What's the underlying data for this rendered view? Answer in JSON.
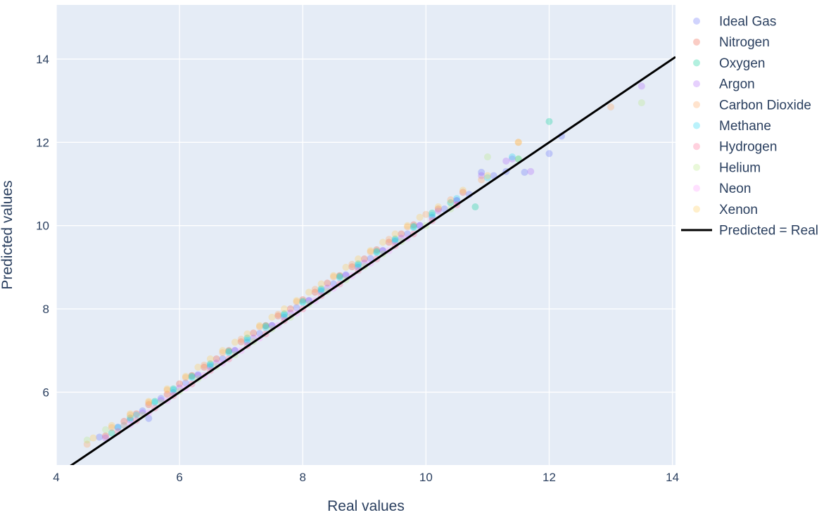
{
  "chart_data": {
    "type": "scatter",
    "xlabel": "Real values",
    "ylabel": "Predicted values",
    "xlim": [
      4,
      14.05
    ],
    "ylim": [
      4.25,
      15.3
    ],
    "x_ticks": [
      4,
      6,
      8,
      10,
      12,
      14
    ],
    "y_ticks": [
      6,
      8,
      10,
      12,
      14
    ],
    "grid": true,
    "legend_position": "right",
    "plot_background": "#e5ecf6",
    "series": [
      {
        "name": "Ideal Gas",
        "color": "#636efa",
        "points": [
          [
            4.7,
            4.92
          ],
          [
            5.0,
            5.16
          ],
          [
            5.2,
            5.33
          ],
          [
            5.4,
            5.55
          ],
          [
            5.5,
            5.37
          ],
          [
            5.7,
            5.85
          ],
          [
            5.9,
            5.99
          ],
          [
            6.1,
            6.22
          ],
          [
            6.3,
            6.42
          ],
          [
            6.5,
            6.61
          ],
          [
            6.7,
            6.8
          ],
          [
            6.9,
            7.0
          ],
          [
            7.1,
            7.2
          ],
          [
            7.3,
            7.41
          ],
          [
            7.5,
            7.6
          ],
          [
            7.7,
            7.8
          ],
          [
            7.9,
            8.03
          ],
          [
            8.1,
            8.2
          ],
          [
            8.3,
            8.42
          ],
          [
            8.5,
            8.6
          ],
          [
            8.7,
            8.82
          ],
          [
            8.9,
            9.0
          ],
          [
            9.1,
            9.21
          ],
          [
            9.3,
            9.4
          ],
          [
            9.5,
            9.62
          ],
          [
            9.7,
            9.8
          ],
          [
            9.9,
            10.0
          ],
          [
            10.1,
            10.2
          ],
          [
            10.3,
            10.4
          ],
          [
            10.5,
            10.6
          ],
          [
            10.7,
            10.75
          ],
          [
            10.9,
            11.28
          ],
          [
            11.1,
            11.2
          ],
          [
            11.3,
            11.3
          ],
          [
            11.6,
            11.28
          ],
          [
            12.0,
            11.73
          ],
          [
            12.2,
            12.15
          ]
        ]
      },
      {
        "name": "Nitrogen",
        "color": "#ef553b",
        "points": [
          [
            4.8,
            4.95
          ],
          [
            5.1,
            5.3
          ],
          [
            5.3,
            5.48
          ],
          [
            5.5,
            5.7
          ],
          [
            5.8,
            5.95
          ],
          [
            6.0,
            6.2
          ],
          [
            6.2,
            6.4
          ],
          [
            6.4,
            6.6
          ],
          [
            6.6,
            6.8
          ],
          [
            6.8,
            7.0
          ],
          [
            7.0,
            7.21
          ],
          [
            7.2,
            7.42
          ],
          [
            7.4,
            7.6
          ],
          [
            7.6,
            7.83
          ],
          [
            7.8,
            8.0
          ],
          [
            8.0,
            8.22
          ],
          [
            8.2,
            8.4
          ],
          [
            8.4,
            8.62
          ],
          [
            8.6,
            8.8
          ],
          [
            8.8,
            9.01
          ],
          [
            9.0,
            9.2
          ],
          [
            9.2,
            9.42
          ],
          [
            9.4,
            9.6
          ],
          [
            9.6,
            9.8
          ],
          [
            9.8,
            10.02
          ],
          [
            10.2,
            10.4
          ],
          [
            10.6,
            10.8
          ]
        ]
      },
      {
        "name": "Oxygen",
        "color": "#00cc96",
        "points": [
          [
            4.9,
            5.02
          ],
          [
            5.2,
            5.38
          ],
          [
            5.6,
            5.78
          ],
          [
            5.9,
            6.08
          ],
          [
            6.2,
            6.38
          ],
          [
            6.5,
            6.68
          ],
          [
            6.8,
            6.98
          ],
          [
            7.1,
            7.3
          ],
          [
            7.4,
            7.59
          ],
          [
            7.7,
            7.88
          ],
          [
            8.0,
            8.18
          ],
          [
            8.3,
            8.48
          ],
          [
            8.6,
            8.78
          ],
          [
            8.9,
            9.08
          ],
          [
            9.2,
            9.38
          ],
          [
            9.5,
            9.68
          ],
          [
            9.8,
            9.98
          ],
          [
            10.1,
            10.3
          ],
          [
            10.4,
            10.55
          ],
          [
            10.8,
            10.45
          ],
          [
            11.5,
            11.6
          ],
          [
            12.0,
            12.5
          ]
        ]
      },
      {
        "name": "Argon",
        "color": "#ab63fa",
        "points": [
          [
            4.8,
            4.9
          ],
          [
            5.1,
            5.2
          ],
          [
            5.4,
            5.5
          ],
          [
            5.7,
            5.8
          ],
          [
            6.0,
            6.1
          ],
          [
            6.3,
            6.4
          ],
          [
            6.6,
            6.7
          ],
          [
            6.9,
            7.0
          ],
          [
            7.2,
            7.3
          ],
          [
            7.5,
            7.6
          ],
          [
            7.8,
            7.9
          ],
          [
            8.1,
            8.2
          ],
          [
            8.4,
            8.5
          ],
          [
            8.7,
            8.8
          ],
          [
            9.0,
            9.1
          ],
          [
            9.3,
            9.4
          ],
          [
            9.6,
            9.7
          ],
          [
            9.9,
            10.0
          ],
          [
            10.2,
            10.35
          ],
          [
            10.5,
            10.6
          ],
          [
            10.9,
            11.2
          ],
          [
            11.3,
            11.55
          ],
          [
            11.7,
            11.3
          ],
          [
            11.4,
            11.6
          ],
          [
            13.5,
            13.35
          ]
        ]
      },
      {
        "name": "Carbon Dioxide",
        "color": "#ffa15a",
        "points": [
          [
            4.5,
            4.75
          ],
          [
            4.9,
            5.15
          ],
          [
            5.2,
            5.45
          ],
          [
            5.5,
            5.75
          ],
          [
            5.8,
            6.05
          ],
          [
            6.1,
            6.35
          ],
          [
            6.4,
            6.65
          ],
          [
            6.7,
            6.95
          ],
          [
            7.0,
            7.27
          ],
          [
            7.3,
            7.57
          ],
          [
            7.6,
            7.87
          ],
          [
            7.9,
            8.17
          ],
          [
            8.2,
            8.47
          ],
          [
            8.5,
            8.77
          ],
          [
            8.8,
            9.07
          ],
          [
            9.1,
            9.37
          ],
          [
            9.4,
            9.67
          ],
          [
            9.7,
            9.97
          ],
          [
            10.0,
            10.27
          ],
          [
            10.4,
            10.62
          ],
          [
            10.9,
            11.1
          ],
          [
            11.5,
            12.0
          ],
          [
            13.0,
            12.85
          ]
        ]
      },
      {
        "name": "Methane",
        "color": "#19d3f3",
        "points": [
          [
            5.0,
            5.15
          ],
          [
            5.3,
            5.45
          ],
          [
            5.6,
            5.75
          ],
          [
            5.9,
            6.05
          ],
          [
            6.2,
            6.35
          ],
          [
            6.5,
            6.65
          ],
          [
            6.8,
            6.95
          ],
          [
            7.1,
            7.25
          ],
          [
            7.4,
            7.55
          ],
          [
            7.7,
            7.85
          ],
          [
            8.0,
            8.15
          ],
          [
            8.3,
            8.45
          ],
          [
            8.6,
            8.75
          ],
          [
            8.9,
            9.05
          ],
          [
            9.2,
            9.35
          ],
          [
            9.5,
            9.65
          ],
          [
            9.8,
            9.95
          ],
          [
            10.1,
            10.25
          ],
          [
            10.5,
            10.65
          ],
          [
            11.0,
            11.15
          ],
          [
            11.4,
            11.65
          ]
        ]
      },
      {
        "name": "Hydrogen",
        "color": "#ff6692",
        "points": [
          [
            5.0,
            5.05
          ],
          [
            5.3,
            5.32
          ],
          [
            5.6,
            5.62
          ],
          [
            5.9,
            5.92
          ],
          [
            6.2,
            6.2
          ],
          [
            6.5,
            6.52
          ],
          [
            6.8,
            6.8
          ],
          [
            7.1,
            7.12
          ],
          [
            7.4,
            7.4
          ],
          [
            7.7,
            7.72
          ],
          [
            8.0,
            8.0
          ],
          [
            8.3,
            8.32
          ],
          [
            8.6,
            8.6
          ],
          [
            8.9,
            8.92
          ],
          [
            9.2,
            9.2
          ],
          [
            9.5,
            9.52
          ],
          [
            9.8,
            9.8
          ],
          [
            10.1,
            10.12
          ],
          [
            10.5,
            10.5
          ]
        ]
      },
      {
        "name": "Helium",
        "color": "#b6e880",
        "points": [
          [
            4.5,
            4.85
          ],
          [
            4.8,
            5.1
          ],
          [
            5.1,
            5.2
          ],
          [
            5.4,
            5.45
          ],
          [
            5.7,
            5.75
          ],
          [
            6.0,
            6.02
          ],
          [
            6.3,
            6.32
          ],
          [
            6.6,
            6.62
          ],
          [
            6.9,
            6.9
          ],
          [
            7.2,
            7.22
          ],
          [
            7.5,
            7.52
          ],
          [
            7.8,
            7.8
          ],
          [
            8.1,
            8.12
          ],
          [
            8.4,
            8.42
          ],
          [
            8.7,
            8.7
          ],
          [
            9.0,
            9.02
          ],
          [
            9.3,
            9.32
          ],
          [
            9.6,
            9.62
          ],
          [
            10.0,
            10.0
          ],
          [
            10.4,
            10.4
          ],
          [
            11.0,
            11.65
          ],
          [
            11.5,
            11.6
          ],
          [
            13.5,
            12.95
          ]
        ]
      },
      {
        "name": "Neon",
        "color": "#ff97ff",
        "points": [
          [
            5.2,
            5.22
          ],
          [
            5.5,
            5.5
          ],
          [
            5.8,
            5.8
          ],
          [
            6.1,
            6.1
          ],
          [
            6.4,
            6.4
          ],
          [
            6.7,
            6.7
          ],
          [
            7.0,
            7.0
          ],
          [
            7.3,
            7.3
          ],
          [
            7.6,
            7.6
          ],
          [
            7.9,
            7.9
          ],
          [
            8.2,
            8.2
          ],
          [
            8.5,
            8.5
          ],
          [
            8.8,
            8.8
          ],
          [
            9.1,
            9.1
          ],
          [
            9.4,
            9.4
          ],
          [
            9.7,
            9.7
          ]
        ]
      },
      {
        "name": "Xenon",
        "color": "#fecb52",
        "points": [
          [
            4.6,
            4.9
          ],
          [
            4.9,
            5.2
          ],
          [
            5.2,
            5.48
          ],
          [
            5.5,
            5.78
          ],
          [
            5.8,
            6.08
          ],
          [
            6.1,
            6.38
          ],
          [
            6.3,
            6.6
          ],
          [
            6.5,
            6.8
          ],
          [
            6.7,
            7.0
          ],
          [
            6.9,
            7.2
          ],
          [
            7.1,
            7.4
          ],
          [
            7.3,
            7.6
          ],
          [
            7.5,
            7.8
          ],
          [
            7.7,
            8.0
          ],
          [
            7.9,
            8.2
          ],
          [
            8.1,
            8.4
          ],
          [
            8.3,
            8.6
          ],
          [
            8.5,
            8.8
          ],
          [
            8.7,
            9.0
          ],
          [
            8.9,
            9.2
          ],
          [
            9.1,
            9.4
          ],
          [
            9.3,
            9.6
          ],
          [
            9.5,
            9.8
          ],
          [
            9.7,
            10.0
          ],
          [
            9.9,
            10.2
          ],
          [
            10.2,
            10.45
          ],
          [
            10.6,
            10.85
          ],
          [
            11.0,
            11.2
          ],
          [
            11.5,
            12.0
          ]
        ]
      }
    ],
    "reference_line": {
      "name": "Predicted = Real",
      "color": "#000000",
      "x": [
        4,
        14.05
      ],
      "y": [
        4,
        14.05
      ]
    }
  }
}
